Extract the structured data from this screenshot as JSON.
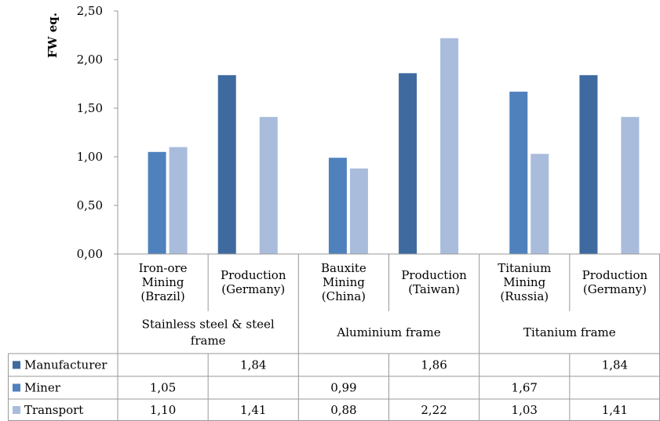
{
  "chart_data": {
    "type": "bar",
    "ylabel": "FW eq.",
    "ylim": [
      0,
      2.5
    ],
    "y_ticks": [
      "0,00",
      "0,50",
      "1,00",
      "1,50",
      "2,00",
      "2,50"
    ],
    "categories": [
      [
        "Iron-ore",
        "Mining",
        "(Brazil)"
      ],
      [
        "Production",
        "(Germany)"
      ],
      [
        "Bauxite",
        "Mining",
        "(China)"
      ],
      [
        "Production",
        "(Taiwan)"
      ],
      [
        "Titanium",
        "Mining",
        "(Russia)"
      ],
      [
        "Production",
        "(Germany)"
      ]
    ],
    "groups": [
      [
        "Stainless steel & steel",
        "frame"
      ],
      [
        "Aluminium frame"
      ],
      [
        "Titanium frame"
      ]
    ],
    "series": [
      {
        "name": "Manufacturer",
        "color": "#3e6aa0",
        "values": [
          null,
          1.84,
          null,
          1.86,
          null,
          1.84
        ],
        "labels": [
          "",
          "1,84",
          "",
          "1,86",
          "",
          "1,84"
        ]
      },
      {
        "name": "Miner",
        "color": "#4f81bd",
        "values": [
          1.05,
          null,
          0.99,
          null,
          1.67,
          null
        ],
        "labels": [
          "1,05",
          "",
          "0,99",
          "",
          "1,67",
          ""
        ]
      },
      {
        "name": "Transport",
        "color": "#a9bcdb",
        "values": [
          1.1,
          1.41,
          0.88,
          2.22,
          1.03,
          1.41
        ],
        "labels": [
          "1,10",
          "1,41",
          "0,88",
          "2,22",
          "1,03",
          "1,41"
        ]
      }
    ],
    "legend": "data-table-left",
    "grid": false
  }
}
